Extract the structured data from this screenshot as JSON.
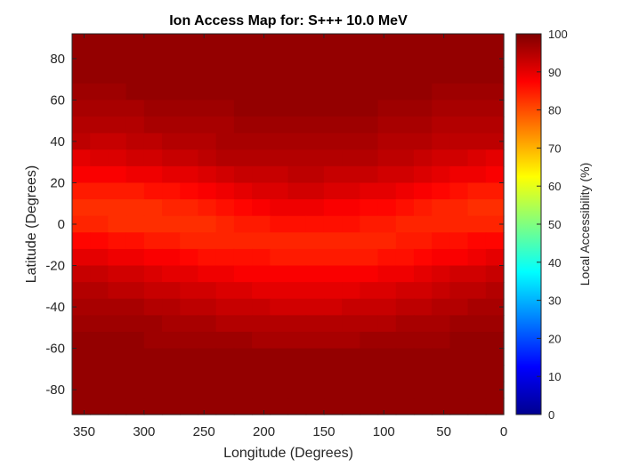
{
  "chart_data": {
    "type": "heatmap",
    "title": "Ion Access Map for: S+++ 10.0 MeV",
    "xlabel": "Longitude (Degrees)",
    "ylabel": "Latitude (Degrees)",
    "xlim": [
      360,
      0
    ],
    "ylim": [
      -92,
      92
    ],
    "x_reversed": true,
    "x_ticks": [
      "350",
      "300",
      "250",
      "200",
      "150",
      "100",
      "50",
      "0"
    ],
    "y_ticks": [
      "80",
      "60",
      "40",
      "20",
      "0",
      "-20",
      "-40",
      "-60",
      "-80"
    ],
    "colorbar": {
      "label": "Local Accessibility (%)",
      "range": [
        0,
        100
      ],
      "ticks": [
        "100",
        "90",
        "80",
        "70",
        "60",
        "50",
        "40",
        "30",
        "20",
        "10",
        "0"
      ],
      "colormap": "jet"
    },
    "grid": false,
    "lon_step": 15,
    "lat_step": 8,
    "rows": [
      {
        "lat_min": 84,
        "lat_max": 92,
        "values": [
          98,
          98,
          98,
          98,
          98,
          98,
          98,
          98,
          98,
          98,
          98,
          98,
          98,
          98,
          98,
          98,
          98,
          98,
          98,
          98,
          98,
          98,
          98,
          98
        ]
      },
      {
        "lat_min": 76,
        "lat_max": 84,
        "values": [
          98,
          98,
          98,
          98,
          98,
          98,
          98,
          98,
          98,
          98,
          98,
          98,
          98,
          98,
          98,
          98,
          98,
          98,
          98,
          98,
          98,
          98,
          98,
          98
        ]
      },
      {
        "lat_min": 68,
        "lat_max": 76,
        "values": [
          98,
          98,
          98,
          98,
          98,
          98,
          98,
          98,
          98,
          98,
          98,
          98,
          98,
          98,
          98,
          98,
          98,
          98,
          98,
          98,
          98,
          98,
          98,
          98
        ]
      },
      {
        "lat_min": 60,
        "lat_max": 68,
        "values": [
          97,
          97,
          97,
          98,
          98,
          98,
          98,
          98,
          98,
          98,
          98,
          98,
          98,
          98,
          98,
          98,
          98,
          98,
          98,
          98,
          97,
          97,
          97,
          97
        ]
      },
      {
        "lat_min": 52,
        "lat_max": 60,
        "values": [
          96,
          96,
          96,
          96,
          97,
          97,
          97,
          97,
          97,
          98,
          98,
          98,
          98,
          98,
          98,
          98,
          98,
          97,
          97,
          97,
          96,
          96,
          96,
          96
        ]
      },
      {
        "lat_min": 44,
        "lat_max": 52,
        "values": [
          95,
          95,
          95,
          95,
          96,
          96,
          96,
          96,
          96,
          97,
          97,
          97,
          97,
          97,
          97,
          97,
          97,
          96,
          96,
          96,
          95,
          95,
          95,
          95
        ]
      },
      {
        "lat_min": 36,
        "lat_max": 44,
        "values": [
          94,
          93,
          93,
          94,
          94,
          95,
          95,
          95,
          96,
          96,
          96,
          96,
          96,
          96,
          96,
          96,
          96,
          95,
          95,
          95,
          94,
          94,
          94,
          94
        ]
      },
      {
        "lat_min": 28,
        "lat_max": 36,
        "values": [
          90,
          91,
          91,
          92,
          92,
          93,
          93,
          94,
          95,
          95,
          95,
          95,
          95,
          95,
          95,
          95,
          95,
          94,
          94,
          93,
          92,
          92,
          91,
          90
        ]
      },
      {
        "lat_min": 20,
        "lat_max": 28,
        "values": [
          88,
          88,
          88,
          89,
          89,
          90,
          90,
          91,
          92,
          93,
          93,
          93,
          94,
          94,
          93,
          93,
          93,
          92,
          92,
          91,
          90,
          89,
          89,
          88
        ]
      },
      {
        "lat_min": 12,
        "lat_max": 20,
        "values": [
          85,
          85,
          85,
          85,
          86,
          86,
          87,
          88,
          89,
          90,
          91,
          91,
          92,
          92,
          91,
          91,
          90,
          90,
          89,
          88,
          87,
          86,
          85,
          85
        ]
      },
      {
        "lat_min": 4,
        "lat_max": 12,
        "values": [
          83,
          83,
          83,
          83,
          83,
          84,
          84,
          85,
          86,
          87,
          88,
          89,
          89,
          89,
          88,
          88,
          87,
          87,
          86,
          85,
          84,
          84,
          83,
          83
        ]
      },
      {
        "lat_min": -4,
        "lat_max": 4,
        "values": [
          84,
          84,
          83,
          83,
          83,
          83,
          83,
          83,
          84,
          85,
          85,
          86,
          86,
          86,
          86,
          86,
          85,
          85,
          84,
          84,
          84,
          84,
          84,
          84
        ]
      },
      {
        "lat_min": -12,
        "lat_max": -4,
        "values": [
          87,
          87,
          86,
          86,
          85,
          85,
          84,
          84,
          84,
          84,
          84,
          84,
          84,
          84,
          84,
          84,
          84,
          84,
          85,
          85,
          86,
          86,
          87,
          87
        ]
      },
      {
        "lat_min": -20,
        "lat_max": -12,
        "values": [
          90,
          90,
          89,
          89,
          88,
          88,
          87,
          86,
          86,
          86,
          86,
          85,
          85,
          85,
          85,
          85,
          85,
          86,
          86,
          87,
          88,
          88,
          89,
          90
        ]
      },
      {
        "lat_min": -28,
        "lat_max": -20,
        "values": [
          93,
          93,
          92,
          92,
          91,
          90,
          90,
          89,
          89,
          88,
          88,
          88,
          88,
          88,
          88,
          88,
          88,
          89,
          89,
          90,
          91,
          92,
          92,
          93
        ]
      },
      {
        "lat_min": -36,
        "lat_max": -28,
        "values": [
          95,
          95,
          94,
          94,
          93,
          93,
          92,
          92,
          91,
          91,
          90,
          90,
          90,
          90,
          90,
          90,
          91,
          91,
          92,
          92,
          93,
          94,
          94,
          95
        ]
      },
      {
        "lat_min": -44,
        "lat_max": -36,
        "values": [
          96,
          96,
          96,
          96,
          95,
          95,
          94,
          94,
          93,
          93,
          93,
          92,
          92,
          92,
          92,
          93,
          93,
          93,
          94,
          94,
          95,
          95,
          96,
          96
        ]
      },
      {
        "lat_min": -52,
        "lat_max": -44,
        "values": [
          97,
          97,
          97,
          97,
          97,
          96,
          96,
          96,
          95,
          95,
          95,
          95,
          95,
          95,
          95,
          95,
          95,
          95,
          96,
          96,
          96,
          97,
          97,
          97
        ]
      },
      {
        "lat_min": -60,
        "lat_max": -52,
        "values": [
          98,
          98,
          98,
          98,
          97,
          97,
          97,
          97,
          97,
          97,
          96,
          96,
          96,
          96,
          96,
          96,
          97,
          97,
          97,
          97,
          97,
          98,
          98,
          98
        ]
      },
      {
        "lat_min": -68,
        "lat_max": -60,
        "values": [
          98,
          98,
          98,
          98,
          98,
          98,
          98,
          98,
          98,
          98,
          98,
          98,
          98,
          98,
          98,
          98,
          98,
          98,
          98,
          98,
          98,
          98,
          98,
          98
        ]
      },
      {
        "lat_min": -76,
        "lat_max": -68,
        "values": [
          98,
          98,
          98,
          98,
          98,
          98,
          98,
          98,
          98,
          98,
          98,
          98,
          98,
          98,
          98,
          98,
          98,
          98,
          98,
          98,
          98,
          98,
          98,
          98
        ]
      },
      {
        "lat_min": -84,
        "lat_max": -76,
        "values": [
          98,
          98,
          98,
          98,
          98,
          98,
          98,
          98,
          98,
          98,
          98,
          98,
          98,
          98,
          98,
          98,
          98,
          98,
          98,
          98,
          98,
          98,
          98,
          98
        ]
      },
      {
        "lat_min": -92,
        "lat_max": -84,
        "values": [
          98,
          98,
          98,
          98,
          98,
          98,
          98,
          98,
          98,
          98,
          98,
          98,
          98,
          98,
          98,
          98,
          98,
          98,
          98,
          98,
          98,
          98,
          98,
          98
        ]
      }
    ]
  }
}
